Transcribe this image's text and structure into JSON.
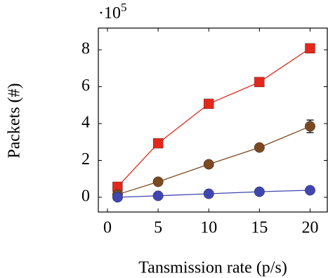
{
  "chart_data": {
    "type": "line",
    "x_label": "Tansmission rate (p/s)",
    "y_label": "Packets (#)",
    "y_multiplier": {
      "base": "·10",
      "exponent": "5"
    },
    "x": [
      1,
      5,
      10,
      15,
      20
    ],
    "series": [
      {
        "color": "#e3281b",
        "marker": "square",
        "values": [
          0.57,
          2.93,
          5.07,
          6.25,
          8.08
        ]
      },
      {
        "color": "#7b4a22",
        "marker": "circle",
        "values": [
          0.15,
          0.84,
          1.79,
          2.7,
          3.85
        ],
        "errors": [
          null,
          null,
          null,
          null,
          0.34
        ]
      },
      {
        "color": "#4046b0",
        "marker": "circle",
        "values": [
          0,
          0.08,
          0.19,
          0.3,
          0.38
        ]
      }
    ],
    "xlim": [
      -0.9,
      21.7
    ],
    "xticks": [
      0,
      5,
      10,
      15,
      20
    ],
    "ylim": [
      -0.8,
      9.18
    ],
    "yticks": [
      0,
      2,
      4,
      6,
      8
    ],
    "grid": false
  }
}
